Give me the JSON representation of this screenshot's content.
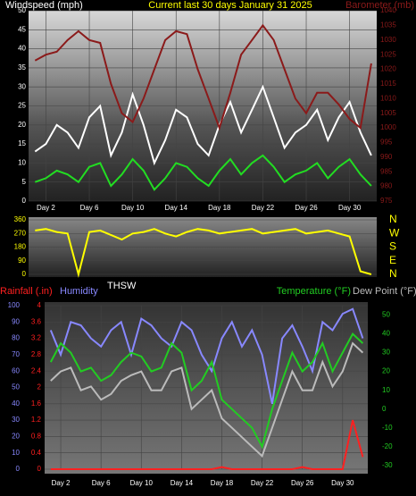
{
  "chart_data": [
    {
      "type": "line",
      "title": "Current last 30 days January 31 2025",
      "y_label": "Windspeed (mph)",
      "y2_label": "Barometer (mb)",
      "x": [
        1,
        2,
        3,
        4,
        5,
        6,
        7,
        8,
        9,
        10,
        11,
        12,
        13,
        14,
        15,
        16,
        17,
        18,
        19,
        20,
        21,
        22,
        23,
        24,
        25,
        26,
        27,
        28,
        29,
        30,
        31,
        32
      ],
      "xlim": [
        0.4,
        32.5
      ],
      "xticks": [
        {
          "value": 2,
          "label": "Day 2"
        },
        {
          "value": 6,
          "label": "Day 6"
        },
        {
          "value": 10,
          "label": "Day 10"
        },
        {
          "value": 14,
          "label": "Day 14"
        },
        {
          "value": 18,
          "label": "Day 18"
        },
        {
          "value": 22,
          "label": "Day 22"
        },
        {
          "value": 26,
          "label": "Day 26"
        },
        {
          "value": 30,
          "label": "Day 30"
        }
      ],
      "ylim": [
        0,
        50
      ],
      "yticks": [
        0,
        5,
        10,
        15,
        20,
        25,
        30,
        35,
        40,
        45,
        50
      ],
      "y2lim": [
        975,
        1040
      ],
      "y2ticks": [
        975,
        980,
        985,
        990,
        995,
        1000,
        1005,
        1010,
        1015,
        1020,
        1025,
        1030,
        1035,
        1040
      ],
      "grid": true,
      "series": [
        {
          "color": "#ffffff",
          "values": [
            13,
            15,
            20,
            18,
            14,
            22,
            25,
            12,
            18,
            28,
            20,
            10,
            16,
            24,
            22,
            15,
            12,
            20,
            26,
            18,
            24,
            30,
            22,
            14,
            18,
            20,
            24,
            16,
            22,
            26,
            18,
            12
          ]
        },
        {
          "color": "#22dd22",
          "values": [
            5,
            6,
            8,
            7,
            5,
            9,
            10,
            4,
            7,
            11,
            8,
            3,
            6,
            10,
            9,
            6,
            4,
            8,
            11,
            7,
            10,
            12,
            9,
            5,
            7,
            8,
            10,
            6,
            9,
            11,
            7,
            4
          ]
        },
        {
          "color": "#8b1a1a",
          "axis": "y2",
          "values": [
            1023,
            1025,
            1026,
            1030,
            1033,
            1030,
            1029,
            1015,
            1005,
            1002,
            1010,
            1020,
            1030,
            1033,
            1032,
            1020,
            1010,
            1000,
            1012,
            1025,
            1030,
            1035,
            1030,
            1020,
            1010,
            1005,
            1012,
            1012,
            1008,
            1003,
            1000,
            1022
          ]
        }
      ]
    },
    {
      "type": "line",
      "y_label": "THSW",
      "x": [
        1,
        2,
        3,
        4,
        5,
        6,
        7,
        8,
        9,
        10,
        11,
        12,
        13,
        14,
        15,
        16,
        17,
        18,
        19,
        20,
        21,
        22,
        23,
        24,
        25,
        26,
        27,
        28,
        29,
        30,
        31,
        32
      ],
      "xlim": [
        0.4,
        32.5
      ],
      "ylim": [
        0,
        360
      ],
      "yticks": [
        0,
        90,
        180,
        270,
        360
      ],
      "y2lim": [
        0,
        360
      ],
      "y2ticks": [
        {
          "value": 360,
          "label": "N"
        },
        {
          "value": 270,
          "label": "W"
        },
        {
          "value": 180,
          "label": "S"
        },
        {
          "value": 90,
          "label": "E"
        },
        {
          "value": 0,
          "label": "N"
        }
      ],
      "grid": true,
      "series": [
        {
          "color": "#ffff00",
          "values": [
            290,
            300,
            280,
            270,
            0,
            280,
            290,
            260,
            230,
            270,
            280,
            300,
            270,
            250,
            280,
            300,
            290,
            270,
            280,
            290,
            300,
            270,
            280,
            290,
            300,
            270,
            280,
            290,
            270,
            250,
            20,
            0
          ]
        }
      ]
    },
    {
      "type": "line",
      "x": [
        1,
        2,
        3,
        4,
        5,
        6,
        7,
        8,
        9,
        10,
        11,
        12,
        13,
        14,
        15,
        16,
        17,
        18,
        19,
        20,
        21,
        22,
        23,
        24,
        25,
        26,
        27,
        28,
        29,
        30,
        31,
        32
      ],
      "xlim": [
        0.4,
        32.5
      ],
      "xticks": [
        {
          "value": 2,
          "label": "Day 2"
        },
        {
          "value": 6,
          "label": "Day 6"
        },
        {
          "value": 10,
          "label": "Day 10"
        },
        {
          "value": 14,
          "label": "Day 14"
        },
        {
          "value": 18,
          "label": "Day 18"
        },
        {
          "value": 22,
          "label": "Day 22"
        },
        {
          "value": 26,
          "label": "Day 26"
        },
        {
          "value": 30,
          "label": "Day 30"
        }
      ],
      "ylim": [
        0,
        100
      ],
      "yticks": [
        0,
        10,
        20,
        30,
        40,
        50,
        60,
        70,
        80,
        90,
        100
      ],
      "y2lim": [
        -32,
        55
      ],
      "y2ticks": [
        -30,
        -20,
        -10,
        0,
        10,
        20,
        30,
        40,
        50
      ],
      "y3lim": [
        0,
        4
      ],
      "y3ticks": [
        0,
        0.4,
        0.8,
        1.2,
        1.6,
        2,
        2.4,
        2.8,
        3.2,
        3.6,
        4
      ],
      "grid": true,
      "series": [
        {
          "name": "Rainfall (.in)",
          "color": "#ff2020",
          "axis": "y3",
          "values": [
            0,
            0,
            0,
            0,
            0,
            0,
            0,
            0,
            0,
            0,
            0,
            0,
            0,
            0,
            0,
            0,
            0,
            0.05,
            0,
            0,
            0,
            0,
            0,
            0,
            0,
            0.05,
            0,
            0,
            0,
            0,
            1.2,
            0.3
          ]
        },
        {
          "name": "Humidity",
          "color": "#8888ff",
          "values": [
            85,
            70,
            90,
            88,
            80,
            75,
            85,
            90,
            70,
            92,
            88,
            80,
            75,
            90,
            85,
            70,
            60,
            80,
            90,
            75,
            85,
            70,
            40,
            80,
            88,
            75,
            60,
            90,
            85,
            95,
            98,
            80
          ]
        },
        {
          "name": "Temperature (°F)",
          "color": "#22cc22",
          "axis": "y2",
          "values": [
            25,
            35,
            30,
            20,
            22,
            15,
            18,
            25,
            30,
            28,
            20,
            22,
            35,
            30,
            10,
            15,
            25,
            5,
            0,
            -5,
            -10,
            -20,
            0,
            15,
            30,
            20,
            25,
            35,
            20,
            30,
            40,
            35
          ]
        },
        {
          "name": "Dew Point (°F)",
          "color": "#bbbbbb",
          "axis": "y2",
          "values": [
            15,
            20,
            22,
            10,
            12,
            5,
            8,
            15,
            18,
            20,
            10,
            10,
            20,
            22,
            0,
            5,
            10,
            -5,
            -10,
            -15,
            -20,
            -25,
            -10,
            5,
            20,
            10,
            10,
            25,
            12,
            20,
            35,
            30
          ]
        }
      ]
    }
  ]
}
